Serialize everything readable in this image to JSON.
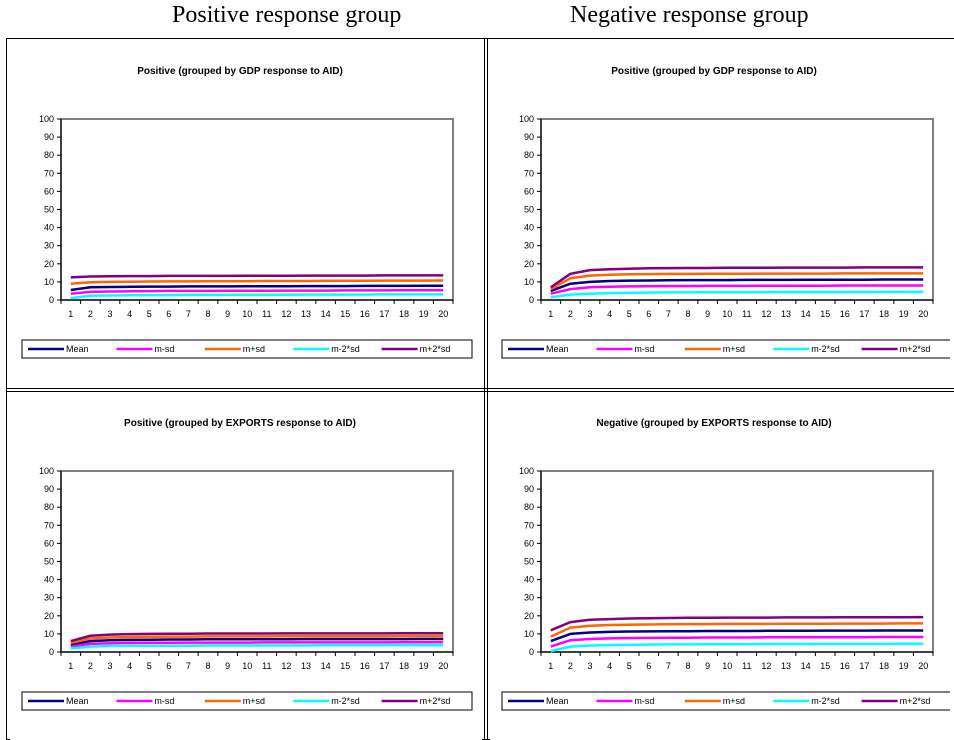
{
  "headings": {
    "left": "Positive response group",
    "right": "Negative response group"
  },
  "colors": {
    "Mean": "#000080",
    "m-sd": "#ff00ff",
    "m+sd": "#ff6600",
    "m-2*sd": "#00ffff",
    "m+2*sd": "#800080",
    "plot_border": "#808080"
  },
  "chart_data": [
    {
      "type": "line",
      "title": "Positive (grouped by GDP response to AID)",
      "xlabel": "",
      "ylabel": "",
      "ylim": [
        0,
        100
      ],
      "yticks": [
        "0",
        "10",
        "20",
        "30",
        "40",
        "50",
        "60",
        "70",
        "80",
        "90",
        "100"
      ],
      "categories": [
        "1",
        "2",
        "3",
        "4",
        "5",
        "6",
        "7",
        "8",
        "9",
        "10",
        "11",
        "12",
        "13",
        "14",
        "15",
        "16",
        "17",
        "18",
        "19",
        "20"
      ],
      "legend": "bottom",
      "grid": false,
      "series": [
        {
          "name": "Mean",
          "values": [
            5.5,
            7,
            7.2,
            7.3,
            7.4,
            7.4,
            7.5,
            7.5,
            7.5,
            7.6,
            7.6,
            7.6,
            7.7,
            7.7,
            7.7,
            7.8,
            7.8,
            7.8,
            7.9,
            7.9
          ]
        },
        {
          "name": "m-sd",
          "values": [
            3.5,
            4.5,
            4.7,
            4.8,
            4.9,
            5,
            5,
            5,
            5.1,
            5.1,
            5.1,
            5.2,
            5.2,
            5.2,
            5.3,
            5.3,
            5.3,
            5.4,
            5.4,
            5.4
          ]
        },
        {
          "name": "m+sd",
          "values": [
            9,
            9.8,
            10,
            10.1,
            10.2,
            10.3,
            10.3,
            10.4,
            10.4,
            10.4,
            10.5,
            10.5,
            10.5,
            10.6,
            10.6,
            10.6,
            10.7,
            10.7,
            10.7,
            10.8
          ]
        },
        {
          "name": "m-2*sd",
          "values": [
            1,
            2.3,
            2.5,
            2.6,
            2.7,
            2.7,
            2.8,
            2.8,
            2.8,
            2.9,
            2.9,
            2.9,
            3,
            3,
            3,
            3,
            3.1,
            3.1,
            3.1,
            3.1
          ]
        },
        {
          "name": "m+2*sd",
          "values": [
            12.5,
            13,
            13.1,
            13.2,
            13.2,
            13.3,
            13.3,
            13.3,
            13.3,
            13.4,
            13.4,
            13.4,
            13.5,
            13.5,
            13.5,
            13.5,
            13.6,
            13.6,
            13.6,
            13.6
          ]
        }
      ]
    },
    {
      "type": "line",
      "title": "Positive (grouped by GDP response to AID)",
      "xlabel": "",
      "ylabel": "",
      "ylim": [
        0,
        100
      ],
      "yticks": [
        "0",
        "10",
        "20",
        "30",
        "40",
        "50",
        "60",
        "70",
        "80",
        "90",
        "100"
      ],
      "categories": [
        "1",
        "2",
        "3",
        "4",
        "5",
        "6",
        "7",
        "8",
        "9",
        "10",
        "11",
        "12",
        "13",
        "14",
        "15",
        "16",
        "17",
        "18",
        "19",
        "20"
      ],
      "legend": "bottom",
      "grid": false,
      "series": [
        {
          "name": "Mean",
          "values": [
            5,
            9,
            10,
            10.5,
            10.7,
            10.8,
            10.9,
            11,
            11,
            11,
            11.1,
            11.1,
            11.1,
            11.2,
            11.2,
            11.2,
            11.2,
            11.3,
            11.3,
            11.3
          ]
        },
        {
          "name": "m-sd",
          "values": [
            3.5,
            6,
            7,
            7.3,
            7.5,
            7.6,
            7.7,
            7.7,
            7.8,
            7.8,
            7.8,
            7.9,
            7.9,
            7.9,
            7.9,
            8,
            8,
            8,
            8,
            8
          ]
        },
        {
          "name": "m+sd",
          "values": [
            6,
            12,
            13.5,
            14,
            14.2,
            14.3,
            14.4,
            14.4,
            14.5,
            14.5,
            14.5,
            14.6,
            14.6,
            14.6,
            14.6,
            14.7,
            14.7,
            14.7,
            14.7,
            14.7
          ]
        },
        {
          "name": "m-2*sd",
          "values": [
            1.5,
            3,
            3.5,
            3.8,
            4,
            4.1,
            4.2,
            4.2,
            4.3,
            4.3,
            4.3,
            4.3,
            4.4,
            4.4,
            4.4,
            4.4,
            4.4,
            4.5,
            4.5,
            4.5
          ]
        },
        {
          "name": "m+2*sd",
          "values": [
            7,
            14.5,
            16.5,
            17,
            17.3,
            17.5,
            17.6,
            17.7,
            17.7,
            17.8,
            17.8,
            17.8,
            17.9,
            17.9,
            17.9,
            17.9,
            18,
            18,
            18,
            18
          ]
        }
      ]
    },
    {
      "type": "line",
      "title": "Positive (grouped by EXPORTS response to AID)",
      "xlabel": "",
      "ylabel": "",
      "ylim": [
        0,
        100
      ],
      "yticks": [
        "0",
        "10",
        "20",
        "30",
        "40",
        "50",
        "60",
        "70",
        "80",
        "90",
        "100"
      ],
      "categories": [
        "1",
        "2",
        "3",
        "4",
        "5",
        "6",
        "7",
        "8",
        "9",
        "10",
        "11",
        "12",
        "13",
        "14",
        "15",
        "16",
        "17",
        "18",
        "19",
        "20"
      ],
      "legend": "bottom",
      "grid": false,
      "series": [
        {
          "name": "Mean",
          "values": [
            4,
            6,
            6.5,
            6.7,
            6.8,
            6.9,
            6.9,
            7,
            7,
            7,
            7,
            7,
            7.1,
            7.1,
            7.1,
            7.1,
            7.1,
            7.1,
            7.2,
            7.2
          ]
        },
        {
          "name": "m-sd",
          "values": [
            3,
            4.5,
            4.8,
            5,
            5.1,
            5.1,
            5.2,
            5.2,
            5.2,
            5.2,
            5.3,
            5.3,
            5.3,
            5.3,
            5.3,
            5.3,
            5.3,
            5.4,
            5.4,
            5.4
          ]
        },
        {
          "name": "m+sd",
          "values": [
            5,
            7.5,
            8,
            8.3,
            8.4,
            8.5,
            8.5,
            8.6,
            8.6,
            8.6,
            8.6,
            8.7,
            8.7,
            8.7,
            8.7,
            8.7,
            8.7,
            8.8,
            8.8,
            8.8
          ]
        },
        {
          "name": "m-2*sd",
          "values": [
            2,
            3,
            3.3,
            3.4,
            3.5,
            3.5,
            3.5,
            3.6,
            3.6,
            3.6,
            3.6,
            3.6,
            3.6,
            3.7,
            3.7,
            3.7,
            3.7,
            3.7,
            3.7,
            3.7
          ]
        },
        {
          "name": "m+2*sd",
          "values": [
            6,
            9,
            9.6,
            9.9,
            10,
            10.1,
            10.1,
            10.2,
            10.2,
            10.2,
            10.2,
            10.3,
            10.3,
            10.3,
            10.3,
            10.3,
            10.3,
            10.4,
            10.4,
            10.4
          ]
        }
      ]
    },
    {
      "type": "line",
      "title": "Negative (grouped by EXPORTS response to AID)",
      "xlabel": "",
      "ylabel": "",
      "ylim": [
        0,
        100
      ],
      "yticks": [
        "0",
        "10",
        "20",
        "30",
        "40",
        "50",
        "60",
        "70",
        "80",
        "90",
        "100"
      ],
      "categories": [
        "1",
        "2",
        "3",
        "4",
        "5",
        "6",
        "7",
        "8",
        "9",
        "10",
        "11",
        "12",
        "13",
        "14",
        "15",
        "16",
        "17",
        "18",
        "19",
        "20"
      ],
      "legend": "bottom",
      "grid": false,
      "series": [
        {
          "name": "Mean",
          "values": [
            6,
            10,
            10.8,
            11.1,
            11.3,
            11.4,
            11.5,
            11.5,
            11.6,
            11.6,
            11.6,
            11.7,
            11.7,
            11.7,
            11.8,
            11.8,
            11.8,
            11.9,
            11.9,
            11.9
          ]
        },
        {
          "name": "m-sd",
          "values": [
            3,
            6.5,
            7.2,
            7.5,
            7.7,
            7.8,
            7.9,
            7.9,
            8,
            8,
            8,
            8.1,
            8.1,
            8.1,
            8.2,
            8.2,
            8.2,
            8.3,
            8.3,
            8.3
          ]
        },
        {
          "name": "m+sd",
          "values": [
            8.5,
            13.5,
            14.5,
            14.9,
            15.1,
            15.2,
            15.3,
            15.4,
            15.4,
            15.5,
            15.5,
            15.5,
            15.6,
            15.6,
            15.6,
            15.7,
            15.7,
            15.7,
            15.8,
            15.8
          ]
        },
        {
          "name": "m-2*sd",
          "values": [
            0.5,
            3,
            3.6,
            3.8,
            4,
            4.1,
            4.2,
            4.2,
            4.3,
            4.3,
            4.3,
            4.4,
            4.4,
            4.4,
            4.5,
            4.5,
            4.5,
            4.5,
            4.6,
            4.6
          ]
        },
        {
          "name": "m+2*sd",
          "values": [
            12,
            16.5,
            17.8,
            18.2,
            18.5,
            18.7,
            18.8,
            18.9,
            18.9,
            19,
            19,
            19,
            19.1,
            19.1,
            19.1,
            19.2,
            19.2,
            19.2,
            19.2,
            19.3
          ]
        }
      ]
    }
  ]
}
